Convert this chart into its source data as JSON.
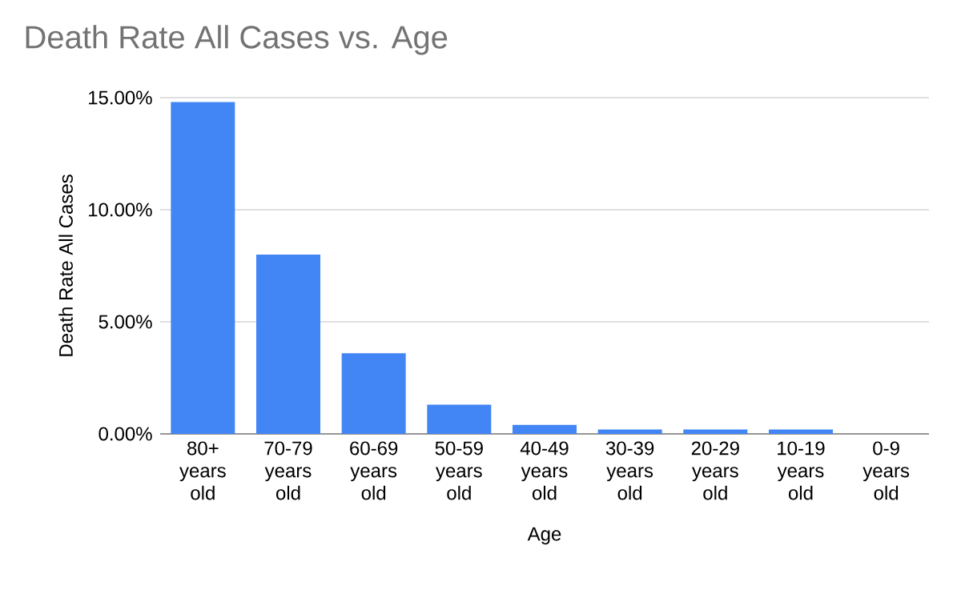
{
  "chart_data": {
    "type": "bar",
    "title": "Death Rate All Cases vs. Age",
    "xlabel": "Age",
    "ylabel": "Death Rate All Cases",
    "categories": [
      "80+ years old",
      "70-79 years old",
      "60-69 years old",
      "50-59 years old",
      "40-49 years old",
      "30-39 years old",
      "20-29 years old",
      "10-19 years old",
      "0-9 years old"
    ],
    "values": [
      14.8,
      8.0,
      3.6,
      1.3,
      0.4,
      0.2,
      0.2,
      0.2,
      0
    ],
    "color": "#4285f4",
    "ylim": [
      0,
      15
    ],
    "yticks": [
      {
        "value": 0,
        "label": "0.00%"
      },
      {
        "value": 5,
        "label": "5.00%"
      },
      {
        "value": 10,
        "label": "10.00%"
      },
      {
        "value": 15,
        "label": "15.00%"
      }
    ],
    "grid": "y"
  }
}
